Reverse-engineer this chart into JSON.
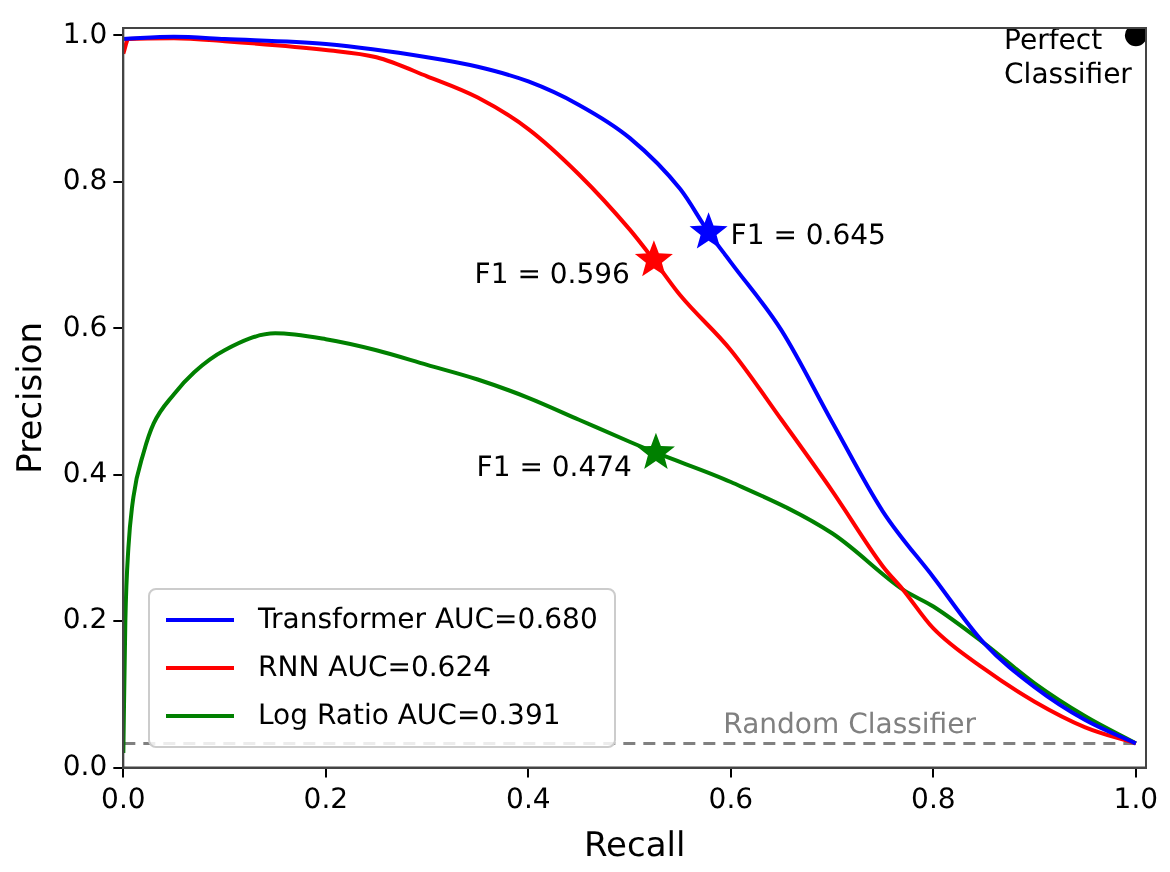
{
  "chart_data": {
    "type": "line",
    "xlabel": "Recall",
    "ylabel": "Precision",
    "xlim": [
      0,
      1.01
    ],
    "ylim": [
      0,
      1.01
    ],
    "xticks": [
      {
        "value": 0,
        "label": "0.0"
      },
      {
        "value": 0.2,
        "label": "0.2"
      },
      {
        "value": 0.4,
        "label": "0.4"
      },
      {
        "value": 0.6,
        "label": "0.6"
      },
      {
        "value": 0.8,
        "label": "0.8"
      },
      {
        "value": 1,
        "label": "1.0"
      }
    ],
    "yticks": [
      {
        "value": 0,
        "label": "0.0"
      },
      {
        "value": 0.2,
        "label": "0.2"
      },
      {
        "value": 0.4,
        "label": "0.4"
      },
      {
        "value": 0.6,
        "label": "0.6"
      },
      {
        "value": 0.8,
        "label": "0.8"
      },
      {
        "value": 1,
        "label": "1.0"
      }
    ],
    "grid": false,
    "legend": "bottom left",
    "line_style": "solid",
    "series": [
      {
        "name": "Transformer AUC=0.680",
        "color": "#0000ff",
        "marker": "none",
        "x": [
          0,
          0.05,
          0.1,
          0.2,
          0.3,
          0.35,
          0.4,
          0.45,
          0.5,
          0.55,
          0.578,
          0.6,
          0.65,
          0.7,
          0.75,
          0.8,
          0.85,
          0.9,
          0.95,
          1
        ],
        "values": [
          0.995,
          0.998,
          0.995,
          0.988,
          0.97,
          0.957,
          0.937,
          0.905,
          0.86,
          0.79,
          0.731,
          0.69,
          0.597,
          0.472,
          0.35,
          0.26,
          0.17,
          0.11,
          0.065,
          0.033
        ]
      },
      {
        "name": "RNN AUC=0.624",
        "color": "#ff0000",
        "marker": "none",
        "x": [
          0,
          0.005,
          0.05,
          0.1,
          0.2,
          0.25,
          0.3,
          0.35,
          0.4,
          0.45,
          0.5,
          0.524,
          0.55,
          0.6,
          0.65,
          0.7,
          0.75,
          0.77,
          0.8,
          0.85,
          0.9,
          0.95,
          1
        ],
        "values": [
          0.975,
          0.995,
          0.996,
          0.992,
          0.98,
          0.97,
          0.944,
          0.915,
          0.872,
          0.81,
          0.735,
          0.693,
          0.645,
          0.57,
          0.475,
          0.378,
          0.275,
          0.243,
          0.19,
          0.135,
          0.09,
          0.055,
          0.033
        ]
      },
      {
        "name": "Log Ratio AUC=0.391",
        "color": "#008000",
        "marker": "none",
        "x": [
          0,
          0.002,
          0.005,
          0.01,
          0.02,
          0.03,
          0.05,
          0.07,
          0.1,
          0.15,
          0.2,
          0.25,
          0.3,
          0.35,
          0.4,
          0.45,
          0.5,
          0.526,
          0.6,
          0.7,
          0.77,
          0.8,
          0.85,
          0.9,
          0.95,
          1
        ],
        "values": [
          0.02,
          0.2,
          0.3,
          0.37,
          0.43,
          0.47,
          0.51,
          0.54,
          0.57,
          0.593,
          0.585,
          0.57,
          0.55,
          0.53,
          0.505,
          0.475,
          0.445,
          0.43,
          0.39,
          0.32,
          0.243,
          0.22,
          0.17,
          0.115,
          0.07,
          0.033
        ]
      },
      {
        "color": "#0000ff",
        "type": "scatter",
        "marker": "star",
        "x": [
          0.578
        ],
        "values": [
          0.731
        ]
      },
      {
        "color": "#ff0000",
        "type": "scatter",
        "marker": "star",
        "x": [
          0.524
        ],
        "values": [
          0.693
        ]
      },
      {
        "color": "#008000",
        "type": "scatter",
        "marker": "star",
        "x": [
          0.526
        ],
        "values": [
          0.43
        ]
      },
      {
        "color": "#000000",
        "type": "scatter",
        "marker": "circle",
        "x": [
          1
        ],
        "values": [
          1
        ]
      }
    ],
    "ref_lines": [
      {
        "axis": "y",
        "value": 0.033,
        "label": "Random Classifier",
        "color": "#808080",
        "line_style": "dashed"
      }
    ],
    "annotations": [
      {
        "text": "F1 = 0.645",
        "x": 0.578,
        "y": 0.731
      },
      {
        "text": "F1 = 0.596",
        "x": 0.524,
        "y": 0.693
      },
      {
        "text": "F1 = 0.474",
        "x": 0.526,
        "y": 0.43
      },
      {
        "text": "Perfect Classifier",
        "x": 1,
        "y": 1
      }
    ]
  }
}
